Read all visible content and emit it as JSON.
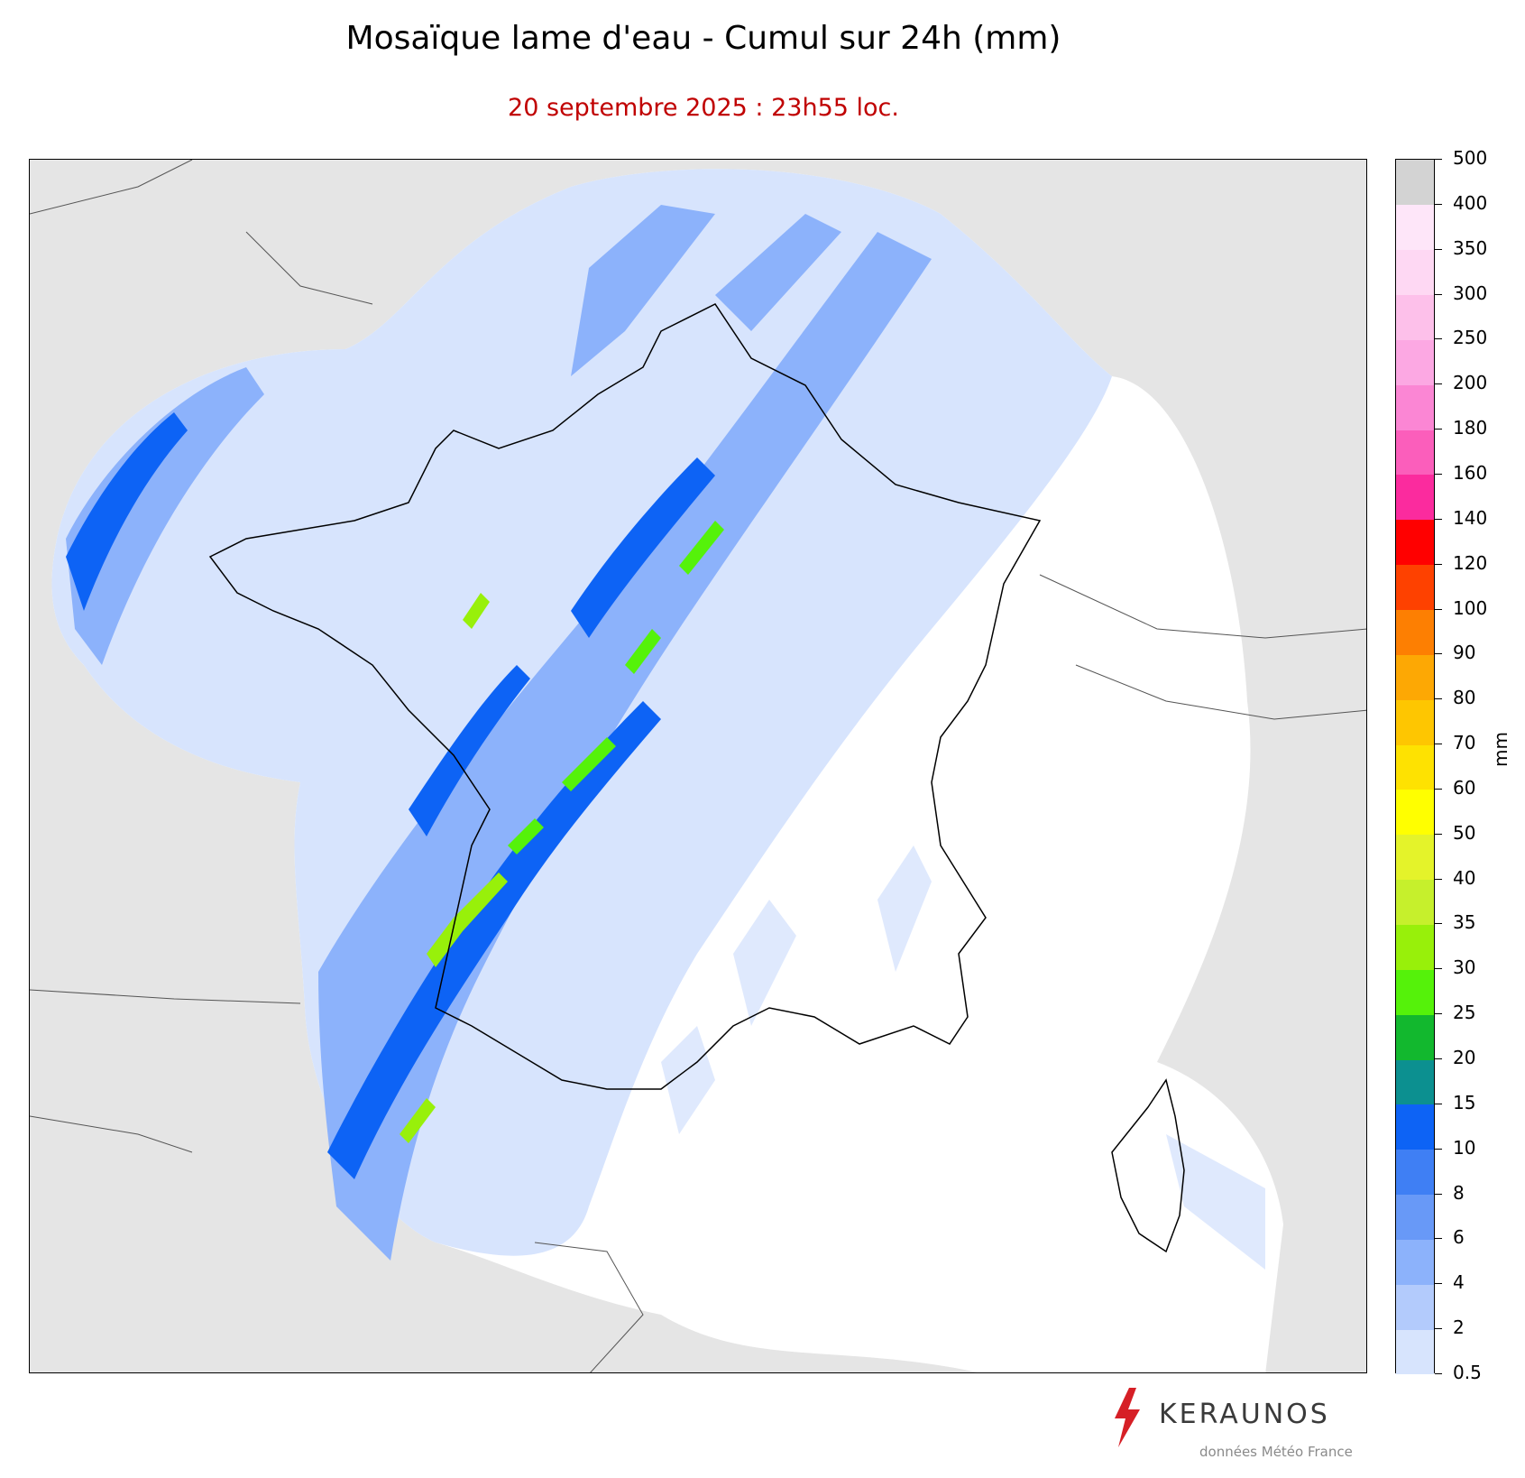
{
  "title": "Mosaïque lame d'eau - Cumul sur 24h (mm)",
  "subtitle": "20 septembre 2025 : 23h55 loc.",
  "colorbar": {
    "unit": "mm",
    "ticks": [
      "0.5",
      "2",
      "4",
      "6",
      "8",
      "10",
      "15",
      "20",
      "25",
      "30",
      "35",
      "40",
      "50",
      "60",
      "70",
      "80",
      "90",
      "100",
      "120",
      "140",
      "160",
      "180",
      "200",
      "250",
      "300",
      "350",
      "400",
      "500"
    ],
    "colors": [
      "#d7e4fd",
      "#b3cbfc",
      "#8cb2fb",
      "#6899f7",
      "#3f7ff4",
      "#0d63f5",
      "#0c9090",
      "#12b82e",
      "#55f20a",
      "#98f00a",
      "#c6f02c",
      "#e4f32a",
      "#ffff00",
      "#fee201",
      "#fec601",
      "#fda804",
      "#fd7f02",
      "#fe4100",
      "#ff0000",
      "#fb2b9e",
      "#fb5ebb",
      "#fb86d4",
      "#fca8e3",
      "#fdc0ea",
      "#fed8f3",
      "#fee6f9",
      "#d3d3d3"
    ]
  },
  "map": {
    "background_color": "#e5e5e5",
    "coverage_color": "#ffffff",
    "rain_light_color": "#d7e4fd",
    "rain_mid_color": "#8cb2fb",
    "rain_heavy_color": "#0d63f5",
    "rain_peak_color": "#98f00a"
  },
  "branding": {
    "logo": "KERAUNOS",
    "source": "données Météo France",
    "logo_icon": "lightning-bolt-icon"
  }
}
